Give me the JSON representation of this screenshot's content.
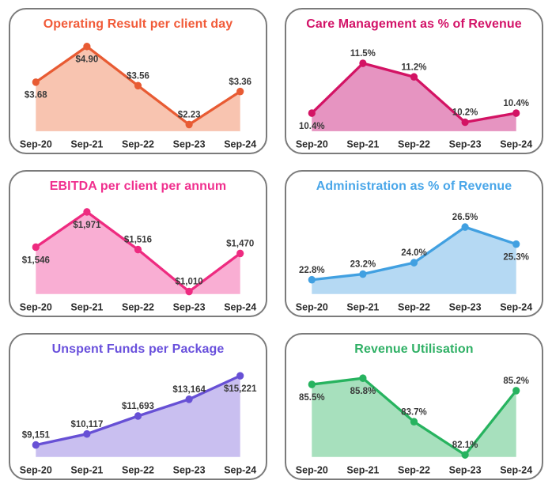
{
  "window": {
    "background": "#ffffff",
    "card_border_color": "#7b7b7b"
  },
  "text_colors": {
    "point_label": "#3a3a3a",
    "axis_label": "#2b2b2b"
  },
  "chart_data": [
    {
      "type": "area",
      "title": "Operating Result per client day",
      "title_color": "#f15b39",
      "line_color": "#e85b33",
      "fill_color": "#f8c4b0",
      "categories": [
        "Sep-20",
        "Sep-21",
        "Sep-22",
        "Sep-23",
        "Sep-24"
      ],
      "values": [
        3.68,
        4.9,
        3.56,
        2.23,
        3.36
      ],
      "point_labels": [
        "$3.68",
        "$4.90",
        "$3.56",
        "$2.23",
        "$3.36"
      ],
      "label_side": [
        "below",
        "below",
        "above",
        "above",
        "above"
      ],
      "ylim": [
        2.0,
        5.1
      ],
      "grid": false,
      "legend": "none"
    },
    {
      "type": "area",
      "title": "Care Management as % of Revenue",
      "title_color": "#d31368",
      "line_color": "#d31364",
      "fill_color": "#e694c1",
      "categories": [
        "Sep-20",
        "Sep-21",
        "Sep-22",
        "Sep-23",
        "Sep-24"
      ],
      "values": [
        10.4,
        11.5,
        11.2,
        10.2,
        10.4
      ],
      "point_labels": [
        "10.4%",
        "11.5%",
        "11.2%",
        "10.2%",
        "10.4%"
      ],
      "label_side": [
        "below",
        "above",
        "above",
        "above",
        "above"
      ],
      "ylim": [
        10.0,
        12.0
      ],
      "grid": false,
      "legend": "none"
    },
    {
      "type": "area",
      "title": "EBITDA per client per annum",
      "title_color": "#f02f8e",
      "line_color": "#ee2b80",
      "fill_color": "#f9aed3",
      "categories": [
        "Sep-20",
        "Sep-21",
        "Sep-22",
        "Sep-23",
        "Sep-24"
      ],
      "values": [
        1546,
        1971,
        1516,
        1010,
        1470
      ],
      "point_labels": [
        "$1,546",
        "$1,971",
        "$1,516",
        "$1,010",
        "$1,470"
      ],
      "label_side": [
        "below",
        "below",
        "above",
        "above",
        "above"
      ],
      "ylim": [
        980,
        2080
      ],
      "grid": false,
      "legend": "none"
    },
    {
      "type": "area",
      "title": "Administration as % of Revenue",
      "title_color": "#49a6e9",
      "line_color": "#41a0e1",
      "fill_color": "#b5d9f3",
      "categories": [
        "Sep-20",
        "Sep-21",
        "Sep-22",
        "Sep-23",
        "Sep-24"
      ],
      "values": [
        22.8,
        23.2,
        24.0,
        26.5,
        25.3
      ],
      "point_labels": [
        "22.8%",
        "23.2%",
        "24.0%",
        "26.5%",
        "25.3%"
      ],
      "label_side": [
        "above",
        "above",
        "above",
        "above",
        "below"
      ],
      "ylim": [
        21.8,
        28.2
      ],
      "grid": false,
      "legend": "none"
    },
    {
      "type": "area",
      "title": "Unspent Funds per Package",
      "title_color": "#6950dc",
      "line_color": "#6750d5",
      "fill_color": "#c9bff0",
      "categories": [
        "Sep-20",
        "Sep-21",
        "Sep-22",
        "Sep-23",
        "Sep-24"
      ],
      "values": [
        9151,
        10117,
        11693,
        13164,
        15221
      ],
      "point_labels": [
        "$9,151",
        "$10,117",
        "$11,693",
        "$13,164",
        "$15,221"
      ],
      "label_side": [
        "above",
        "above",
        "above",
        "above",
        "below"
      ],
      "ylim": [
        8100,
        16100
      ],
      "grid": false,
      "legend": "none"
    },
    {
      "type": "area",
      "title": "Revenue Utilisation",
      "title_color": "#2fb065",
      "line_color": "#27b35f",
      "fill_color": "#a7e0bd",
      "categories": [
        "Sep-20",
        "Sep-21",
        "Sep-22",
        "Sep-23",
        "Sep-24"
      ],
      "values": [
        85.5,
        85.8,
        83.7,
        82.1,
        85.2
      ],
      "point_labels": [
        "85.5%",
        "85.8%",
        "83.7%",
        "82.1%",
        "85.2%"
      ],
      "label_side": [
        "below",
        "below",
        "above",
        "above",
        "above"
      ],
      "ylim": [
        82.0,
        86.4
      ],
      "grid": false,
      "legend": "none"
    }
  ]
}
